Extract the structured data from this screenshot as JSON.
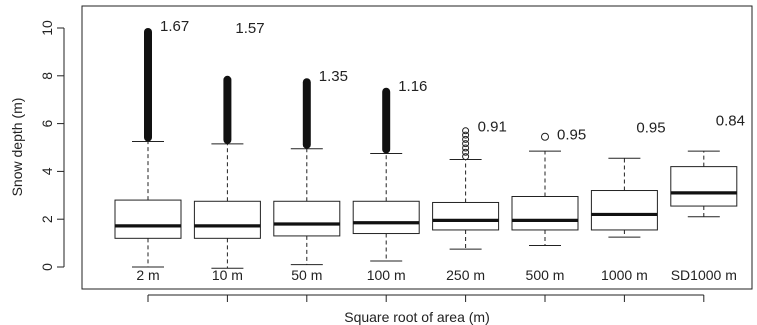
{
  "chart_data": {
    "type": "boxplot",
    "xlabel": "Square root of area (m)",
    "ylabel": "Snow depth (m)",
    "ylim": [
      -0.6,
      10.8
    ],
    "yticks": [
      0,
      2,
      4,
      6,
      8,
      10
    ],
    "grid": false,
    "categories": [
      "2 m",
      "10 m",
      "50 m",
      "100 m",
      "250 m",
      "500 m",
      "1000 m",
      "SD1000 m"
    ],
    "boxes": [
      {
        "whisker_low": 0.0,
        "q1": 1.2,
        "median": 1.72,
        "q3": 2.8,
        "whisker_high": 5.25,
        "outliers_from": 5.25,
        "outliers_to": 10.0,
        "annotation": "1.67"
      },
      {
        "whisker_low": -0.05,
        "q1": 1.2,
        "median": 1.72,
        "q3": 2.75,
        "whisker_high": 5.15,
        "outliers_from": 5.15,
        "outliers_to": 8.0,
        "annotation": "1.57"
      },
      {
        "whisker_low": 0.1,
        "q1": 1.3,
        "median": 1.8,
        "q3": 2.75,
        "whisker_high": 4.95,
        "outliers_from": 4.95,
        "outliers_to": 7.9,
        "annotation": "1.35"
      },
      {
        "whisker_low": 0.25,
        "q1": 1.4,
        "median": 1.85,
        "q3": 2.75,
        "whisker_high": 4.75,
        "outliers_from": 4.75,
        "outliers_to": 7.5,
        "annotation": "1.16"
      },
      {
        "whisker_low": 0.75,
        "q1": 1.55,
        "median": 1.95,
        "q3": 2.7,
        "whisker_high": 4.5,
        "outliers_from": 4.5,
        "outliers_to": 5.8,
        "annotation": "0.91"
      },
      {
        "whisker_low": 0.9,
        "q1": 1.55,
        "median": 1.95,
        "q3": 2.95,
        "whisker_high": 4.85,
        "outliers": [
          5.45
        ],
        "annotation": "0.95"
      },
      {
        "whisker_low": 1.25,
        "q1": 1.55,
        "median": 2.2,
        "q3": 3.2,
        "whisker_high": 4.55,
        "annotation": "0.95"
      },
      {
        "whisker_low": 2.1,
        "q1": 2.55,
        "median": 3.1,
        "q3": 4.2,
        "whisker_high": 4.85,
        "annotation": "0.84"
      }
    ]
  }
}
